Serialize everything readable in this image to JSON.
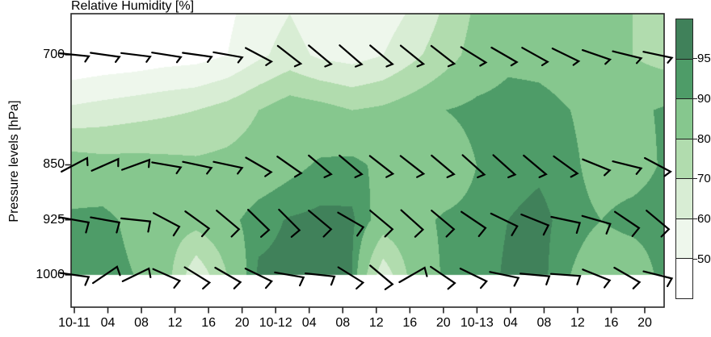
{
  "figure": {
    "title": "Relative Humidity [%]",
    "ylabel": "Pressure levels [hPa]"
  },
  "colorbar": {
    "tick_labels": [
      "95",
      "90",
      "80",
      "70",
      "60",
      "50"
    ],
    "segment_colors_top_to_bottom": [
      "#40815a",
      "#4e9c68",
      "#86c78e",
      "#b1dcae",
      "#d8edd4",
      "#eef7ec",
      "#ffffff"
    ]
  },
  "chart_data": {
    "type": "heatmap",
    "title": "Relative Humidity [%]",
    "xlabel": "",
    "ylabel": "Pressure levels [hPa]",
    "x_tick_labels": [
      "10-11",
      "04",
      "08",
      "12",
      "16",
      "20",
      "10-12",
      "04",
      "08",
      "12",
      "16",
      "20",
      "10-13",
      "04",
      "08",
      "12",
      "16",
      "20"
    ],
    "y_ticks": [
      {
        "label": "700",
        "pressure": 700
      },
      {
        "label": "850",
        "pressure": 850
      },
      {
        "label": "925",
        "pressure": 925
      },
      {
        "label": "1000",
        "pressure": 1000
      }
    ],
    "contour_levels": [
      50,
      60,
      70,
      80,
      90,
      95
    ],
    "band_colors": [
      "#ffffff",
      "#eef7ec",
      "#d8edd4",
      "#b1dcae",
      "#86c78e",
      "#4e9c68",
      "#40815a"
    ],
    "rh_grid": {
      "pressures": [
        644,
        700,
        775,
        850,
        925,
        1000
      ],
      "n_time_cols": 20,
      "values": [
        [
          38,
          40,
          42,
          44,
          46,
          48,
          55,
          60,
          54,
          52,
          55,
          62,
          72,
          82,
          86,
          86,
          85,
          84,
          80,
          74
        ],
        [
          40,
          42,
          43,
          45,
          46,
          50,
          58,
          64,
          58,
          56,
          60,
          68,
          76,
          84,
          88,
          88,
          87,
          85,
          80,
          76
        ],
        [
          62,
          64,
          66,
          68,
          70,
          74,
          80,
          86,
          84,
          80,
          82,
          86,
          90,
          92,
          93,
          92,
          90,
          86,
          88,
          91
        ],
        [
          86,
          84,
          84,
          83,
          82,
          83,
          85,
          88,
          91,
          92,
          88,
          84,
          85,
          90,
          93,
          94,
          92,
          86,
          86,
          91
        ],
        [
          91,
          92,
          88,
          85,
          84,
          88,
          93,
          95.5,
          96.5,
          96,
          86,
          88,
          91,
          92,
          95,
          96.5,
          93,
          90,
          93,
          94
        ],
        [
          92,
          93,
          90,
          85,
          62,
          80,
          96,
          96.5,
          96.5,
          95,
          63,
          85,
          91,
          92,
          96,
          97,
          90,
          84,
          83,
          93
        ]
      ]
    },
    "wind_barbs": {
      "rows": [
        {
          "pressure": 700,
          "flag_len": 8,
          "flag_angle_offset": 118,
          "staff_angles_deg": [
            6,
            8,
            7,
            9,
            8,
            10,
            28,
            38,
            40,
            41,
            40,
            39,
            38,
            32,
            30,
            29,
            26,
            19,
            14,
            12
          ]
        },
        {
          "pressure": 850,
          "flag_len": 9,
          "flag_angle_offset": 115,
          "staff_angles_deg": [
            -28,
            -24,
            -20,
            10,
            12,
            12,
            30,
            35,
            40,
            40,
            38,
            38,
            40,
            42,
            42,
            40,
            36,
            22,
            14,
            28
          ]
        },
        {
          "pressure": 925,
          "flag_len": 13,
          "flag_angle_offset": 95,
          "staff_angles_deg": [
            10,
            10,
            6,
            28,
            36,
            40,
            44,
            45,
            40,
            30,
            40,
            42,
            40,
            34,
            26,
            22,
            12,
            16,
            34,
            40
          ]
        },
        {
          "pressure": 1000,
          "flag_len": 11,
          "flag_angle_offset": 105,
          "staff_angles_deg": [
            8,
            -34,
            -26,
            24,
            32,
            30,
            26,
            10,
            6,
            32,
            40,
            -30,
            34,
            26,
            12,
            5,
            4,
            22,
            30,
            14
          ]
        }
      ]
    }
  }
}
